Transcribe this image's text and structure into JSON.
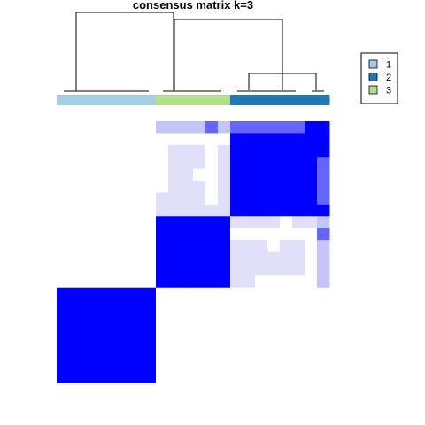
{
  "chart_data": {
    "type": "heatmap",
    "title": "consensus matrix k=3",
    "k": 3,
    "colors": {
      "high": "#0000FF",
      "mid": "#6666FF",
      "low": "#C4C4F8",
      "faint": "#E0E0FA",
      "background": "#FFFFFF",
      "cluster_1": "#A6CEE3",
      "cluster_2": "#1F78B4",
      "cluster_3": "#B2DF8A"
    },
    "legend": {
      "placement": "top-right",
      "entries": [
        {
          "label": "1",
          "color": "#A6CEE3"
        },
        {
          "label": "2",
          "color": "#1F78B4"
        },
        {
          "label": "3",
          "color": "#B2DF8A"
        }
      ]
    },
    "column_clusters": [
      "1",
      "1",
      "1",
      "1",
      "1",
      "1",
      "1",
      "1",
      "3",
      "3",
      "3",
      "3",
      "3",
      "3",
      "2",
      "2",
      "2",
      "2",
      "2",
      "2",
      "2",
      "2"
    ],
    "matrix": [
      [
        0,
        0,
        0,
        0,
        0,
        0,
        0,
        0,
        1,
        1,
        1,
        1,
        2,
        1,
        2,
        2,
        2,
        2,
        2,
        2,
        3,
        3
      ],
      [
        0,
        0,
        0,
        0,
        0,
        0,
        0,
        0,
        0,
        0,
        0,
        0,
        0,
        0,
        3,
        3,
        3,
        3,
        3,
        3,
        3,
        3
      ],
      [
        0,
        0,
        0,
        0,
        0,
        0,
        0,
        0,
        0,
        4,
        4,
        4,
        0,
        4,
        3,
        3,
        3,
        3,
        3,
        3,
        3,
        3
      ],
      [
        0,
        0,
        0,
        0,
        0,
        0,
        0,
        0,
        0,
        4,
        4,
        4,
        0,
        4,
        3,
        3,
        3,
        3,
        3,
        3,
        3,
        2
      ],
      [
        0,
        0,
        0,
        0,
        0,
        0,
        0,
        0,
        0,
        4,
        4,
        0,
        0,
        4,
        3,
        3,
        3,
        3,
        3,
        3,
        3,
        2
      ],
      [
        0,
        0,
        0,
        0,
        0,
        0,
        0,
        0,
        0,
        4,
        4,
        4,
        0,
        4,
        3,
        3,
        3,
        3,
        3,
        3,
        3,
        2
      ],
      [
        0,
        0,
        0,
        0,
        0,
        0,
        0,
        0,
        4,
        4,
        4,
        4,
        0,
        4,
        3,
        3,
        3,
        3,
        3,
        3,
        3,
        2
      ],
      [
        0,
        0,
        0,
        0,
        0,
        0,
        0,
        0,
        4,
        4,
        4,
        4,
        4,
        4,
        3,
        3,
        3,
        3,
        3,
        3,
        3,
        3
      ],
      [
        0,
        0,
        0,
        0,
        0,
        0,
        0,
        0,
        3,
        3,
        3,
        3,
        3,
        3,
        4,
        4,
        4,
        4,
        0,
        4,
        4,
        1
      ],
      [
        0,
        0,
        0,
        0,
        0,
        0,
        0,
        0,
        3,
        3,
        3,
        3,
        3,
        3,
        0,
        0,
        0,
        0,
        0,
        0,
        0,
        2
      ],
      [
        0,
        0,
        0,
        0,
        0,
        0,
        0,
        0,
        3,
        3,
        3,
        3,
        3,
        3,
        4,
        4,
        4,
        0,
        4,
        4,
        0,
        1
      ],
      [
        0,
        0,
        0,
        0,
        0,
        0,
        0,
        0,
        3,
        3,
        3,
        3,
        3,
        3,
        4,
        4,
        4,
        4,
        4,
        4,
        0,
        1
      ],
      [
        0,
        0,
        0,
        0,
        0,
        0,
        0,
        0,
        3,
        3,
        3,
        3,
        3,
        3,
        4,
        4,
        4,
        4,
        4,
        4,
        0,
        1
      ],
      [
        0,
        0,
        0,
        0,
        0,
        0,
        0,
        0,
        3,
        3,
        3,
        3,
        3,
        3,
        4,
        4,
        0,
        0,
        0,
        0,
        0,
        1
      ],
      [
        3,
        3,
        3,
        3,
        3,
        3,
        3,
        3,
        0,
        0,
        0,
        0,
        0,
        0,
        0,
        0,
        0,
        0,
        0,
        0,
        0,
        0
      ],
      [
        3,
        3,
        3,
        3,
        3,
        3,
        3,
        3,
        0,
        0,
        0,
        0,
        0,
        0,
        0,
        0,
        0,
        0,
        0,
        0,
        0,
        0
      ],
      [
        3,
        3,
        3,
        3,
        3,
        3,
        3,
        3,
        0,
        0,
        0,
        0,
        0,
        0,
        0,
        0,
        0,
        0,
        0,
        0,
        0,
        0
      ],
      [
        3,
        3,
        3,
        3,
        3,
        3,
        3,
        3,
        0,
        0,
        0,
        0,
        0,
        0,
        0,
        0,
        0,
        0,
        0,
        0,
        0,
        0
      ],
      [
        3,
        3,
        3,
        3,
        3,
        3,
        3,
        3,
        0,
        0,
        0,
        0,
        0,
        0,
        0,
        0,
        0,
        0,
        0,
        0,
        0,
        0
      ],
      [
        3,
        3,
        3,
        3,
        3,
        3,
        3,
        3,
        0,
        0,
        0,
        0,
        0,
        0,
        0,
        0,
        0,
        0,
        0,
        0,
        0,
        0
      ],
      [
        3,
        3,
        3,
        3,
        3,
        3,
        3,
        3,
        0,
        0,
        0,
        0,
        0,
        0,
        0,
        0,
        0,
        0,
        0,
        0,
        0,
        0
      ],
      [
        3,
        3,
        3,
        3,
        3,
        3,
        3,
        3,
        0,
        0,
        0,
        0,
        0,
        0,
        0,
        0,
        0,
        0,
        0,
        0,
        0,
        0
      ]
    ],
    "matrix_levels": [
      "background",
      "low",
      "mid",
      "high",
      "faint"
    ]
  }
}
